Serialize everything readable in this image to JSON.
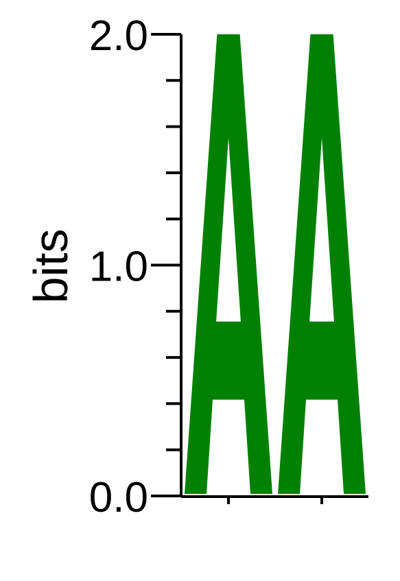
{
  "chart_data": {
    "type": "sequence-logo",
    "title": "",
    "xlabel": "",
    "ylabel": "bits",
    "ylim": [
      0,
      2
    ],
    "yticks": [
      {
        "value": 0,
        "label": "0.0"
      },
      {
        "value": 0.2,
        "label": ""
      },
      {
        "value": 0.4,
        "label": ""
      },
      {
        "value": 0.6,
        "label": ""
      },
      {
        "value": 0.8,
        "label": ""
      },
      {
        "value": 1,
        "label": "1.0"
      },
      {
        "value": 1.2,
        "label": ""
      },
      {
        "value": 1.4,
        "label": ""
      },
      {
        "value": 1.6,
        "label": ""
      },
      {
        "value": 1.8,
        "label": ""
      },
      {
        "value": 2,
        "label": "2.0"
      }
    ],
    "positions": [
      {
        "position": 1,
        "letters": [
          {
            "letter": "A",
            "bits": 2.0,
            "color": "#008000"
          }
        ]
      },
      {
        "position": 2,
        "letters": [
          {
            "letter": "A",
            "bits": 2.0,
            "color": "#008000"
          }
        ]
      }
    ]
  }
}
